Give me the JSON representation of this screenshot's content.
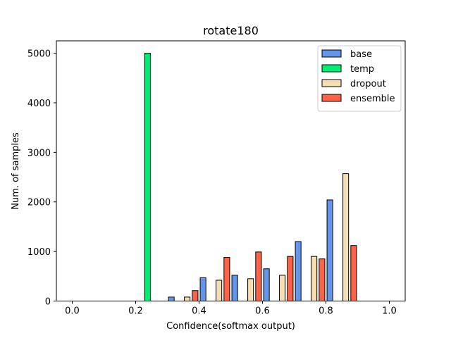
{
  "chart_data": {
    "type": "bar",
    "title": "rotate180",
    "xlabel": "Confidence(softmax output)",
    "ylabel": "Num. of samples",
    "xlim": [
      -0.05,
      1.05
    ],
    "ylim": [
      0,
      5250
    ],
    "xticks": [
      0.0,
      0.2,
      0.4,
      0.6,
      0.8,
      1.0
    ],
    "xtick_labels": [
      "0.0",
      "0.2",
      "0.4",
      "0.6",
      "0.8",
      "1.0"
    ],
    "yticks": [
      0,
      1000,
      2000,
      3000,
      4000,
      5000
    ],
    "ytick_labels": [
      "0",
      "1000",
      "2000",
      "3000",
      "4000",
      "5000"
    ],
    "bins": [
      0.0,
      0.1,
      0.2,
      0.3,
      0.4,
      0.5,
      0.6,
      0.7,
      0.8,
      0.9
    ],
    "bin_width": 0.1,
    "legend_position": "top-right",
    "grid": false,
    "series": [
      {
        "name": "base",
        "color": "#6495ED",
        "values": [
          0,
          0,
          0,
          80,
          470,
          520,
          650,
          1200,
          2040,
          0
        ]
      },
      {
        "name": "temp",
        "color": "#00EE76",
        "values": [
          0,
          0,
          5000,
          0,
          0,
          0,
          0,
          0,
          0,
          0
        ]
      },
      {
        "name": "dropout",
        "color": "#F5DEB3",
        "values": [
          0,
          0,
          0,
          80,
          420,
          450,
          520,
          900,
          2570,
          0
        ]
      },
      {
        "name": "ensemble",
        "color": "#FF6347",
        "values": [
          0,
          0,
          0,
          210,
          880,
          990,
          900,
          850,
          1120,
          0
        ]
      }
    ]
  }
}
